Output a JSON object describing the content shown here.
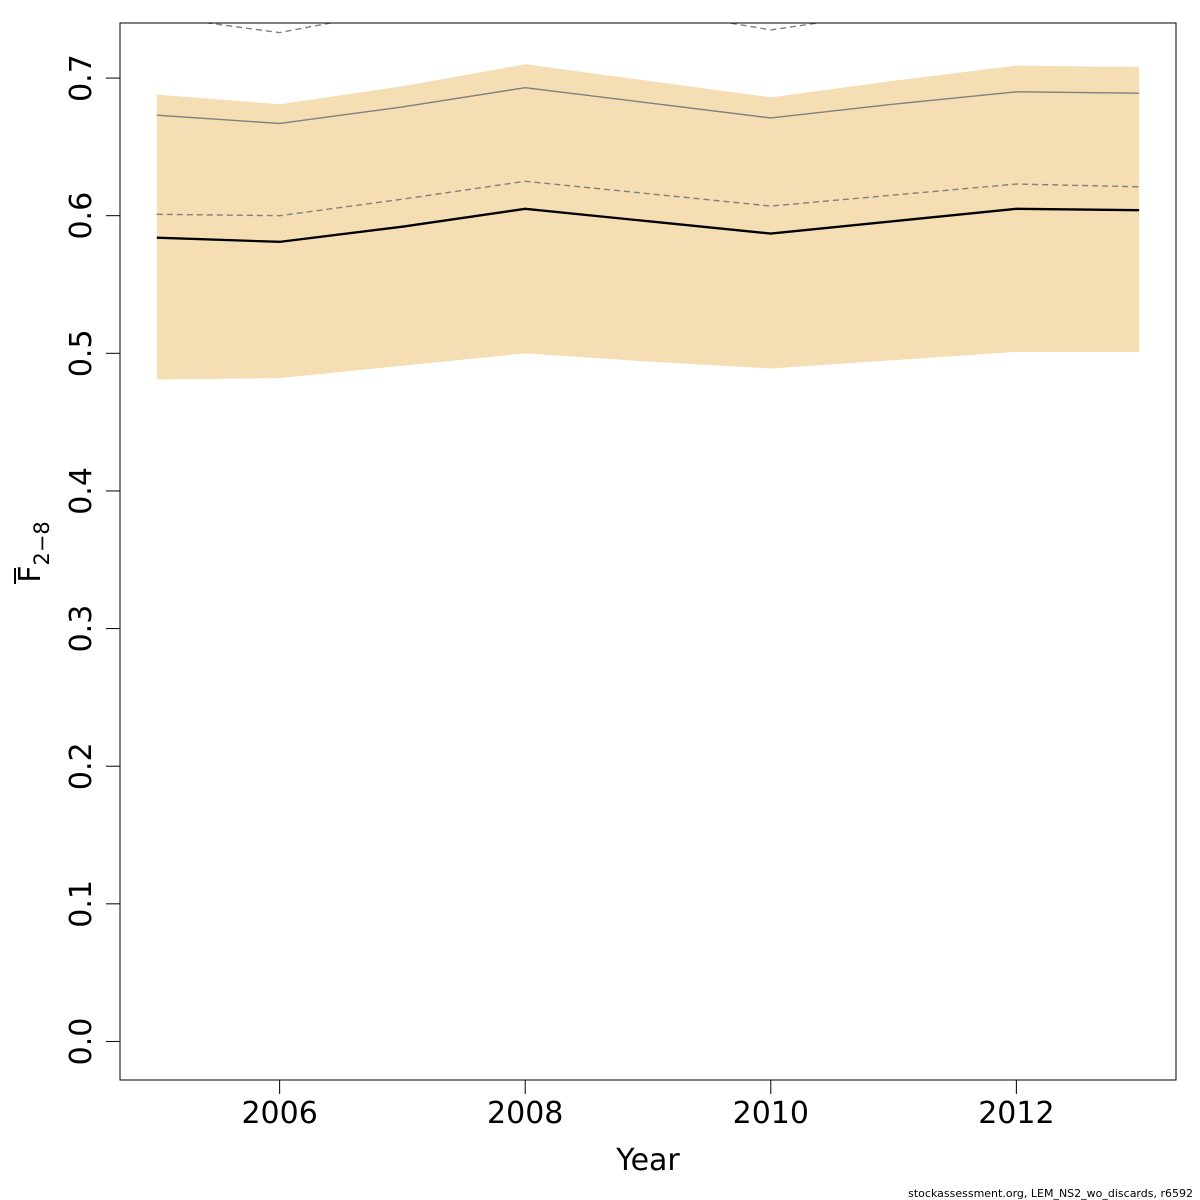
{
  "chart_data": {
    "type": "line",
    "xlabel": "Year",
    "ylabel": {
      "main": "F",
      "subscript": "2−8"
    },
    "xlim": [
      2004.7,
      2013.3
    ],
    "ylim": [
      -0.028,
      0.74
    ],
    "x_ticks": [
      2006,
      2008,
      2010,
      2012
    ],
    "y_ticks": [
      0.0,
      0.1,
      0.2,
      0.3,
      0.4,
      0.5,
      0.6,
      0.7
    ],
    "y_tick_labels": [
      "0.0",
      "0.1",
      "0.2",
      "0.3",
      "0.4",
      "0.5",
      "0.6",
      "0.7"
    ],
    "grid": false,
    "x": [
      2005,
      2006,
      2007,
      2008,
      2009,
      2010,
      2011,
      2012,
      2013
    ],
    "series": [
      {
        "role": "confidence-band-upper",
        "color": "#f5deb3",
        "values": [
          0.688,
          0.681,
          0.694,
          0.71,
          0.698,
          0.686,
          0.698,
          0.709,
          0.708
        ]
      },
      {
        "role": "confidence-band-lower",
        "color": "#f5deb3",
        "values": [
          0.481,
          0.482,
          0.491,
          0.5,
          0.494,
          0.489,
          0.495,
          0.501,
          0.501
        ]
      },
      {
        "role": "estimate",
        "color": "#000000",
        "style": "solid",
        "values": [
          0.584,
          0.581,
          0.592,
          0.605,
          0.596,
          0.587,
          0.596,
          0.605,
          0.604
        ]
      },
      {
        "role": "reference-solid",
        "color": "#808080",
        "style": "solid",
        "values": [
          0.673,
          0.667,
          0.679,
          0.693,
          0.682,
          0.671,
          0.681,
          0.69,
          0.689
        ]
      },
      {
        "role": "reference-dashed",
        "color": "#808080",
        "style": "dashed",
        "values": [
          0.601,
          0.6,
          0.612,
          0.625,
          0.616,
          0.607,
          0.615,
          0.623,
          0.621
        ]
      },
      {
        "role": "reference-dashed-upper",
        "color": "#808080",
        "style": "dashed",
        "values": [
          0.745,
          0.733,
          0.75,
          0.76,
          0.75,
          0.735,
          0.748,
          0.758,
          0.757
        ]
      }
    ]
  },
  "footer": "stockassessment.org, LEM_NS2_wo_discards, r6592"
}
